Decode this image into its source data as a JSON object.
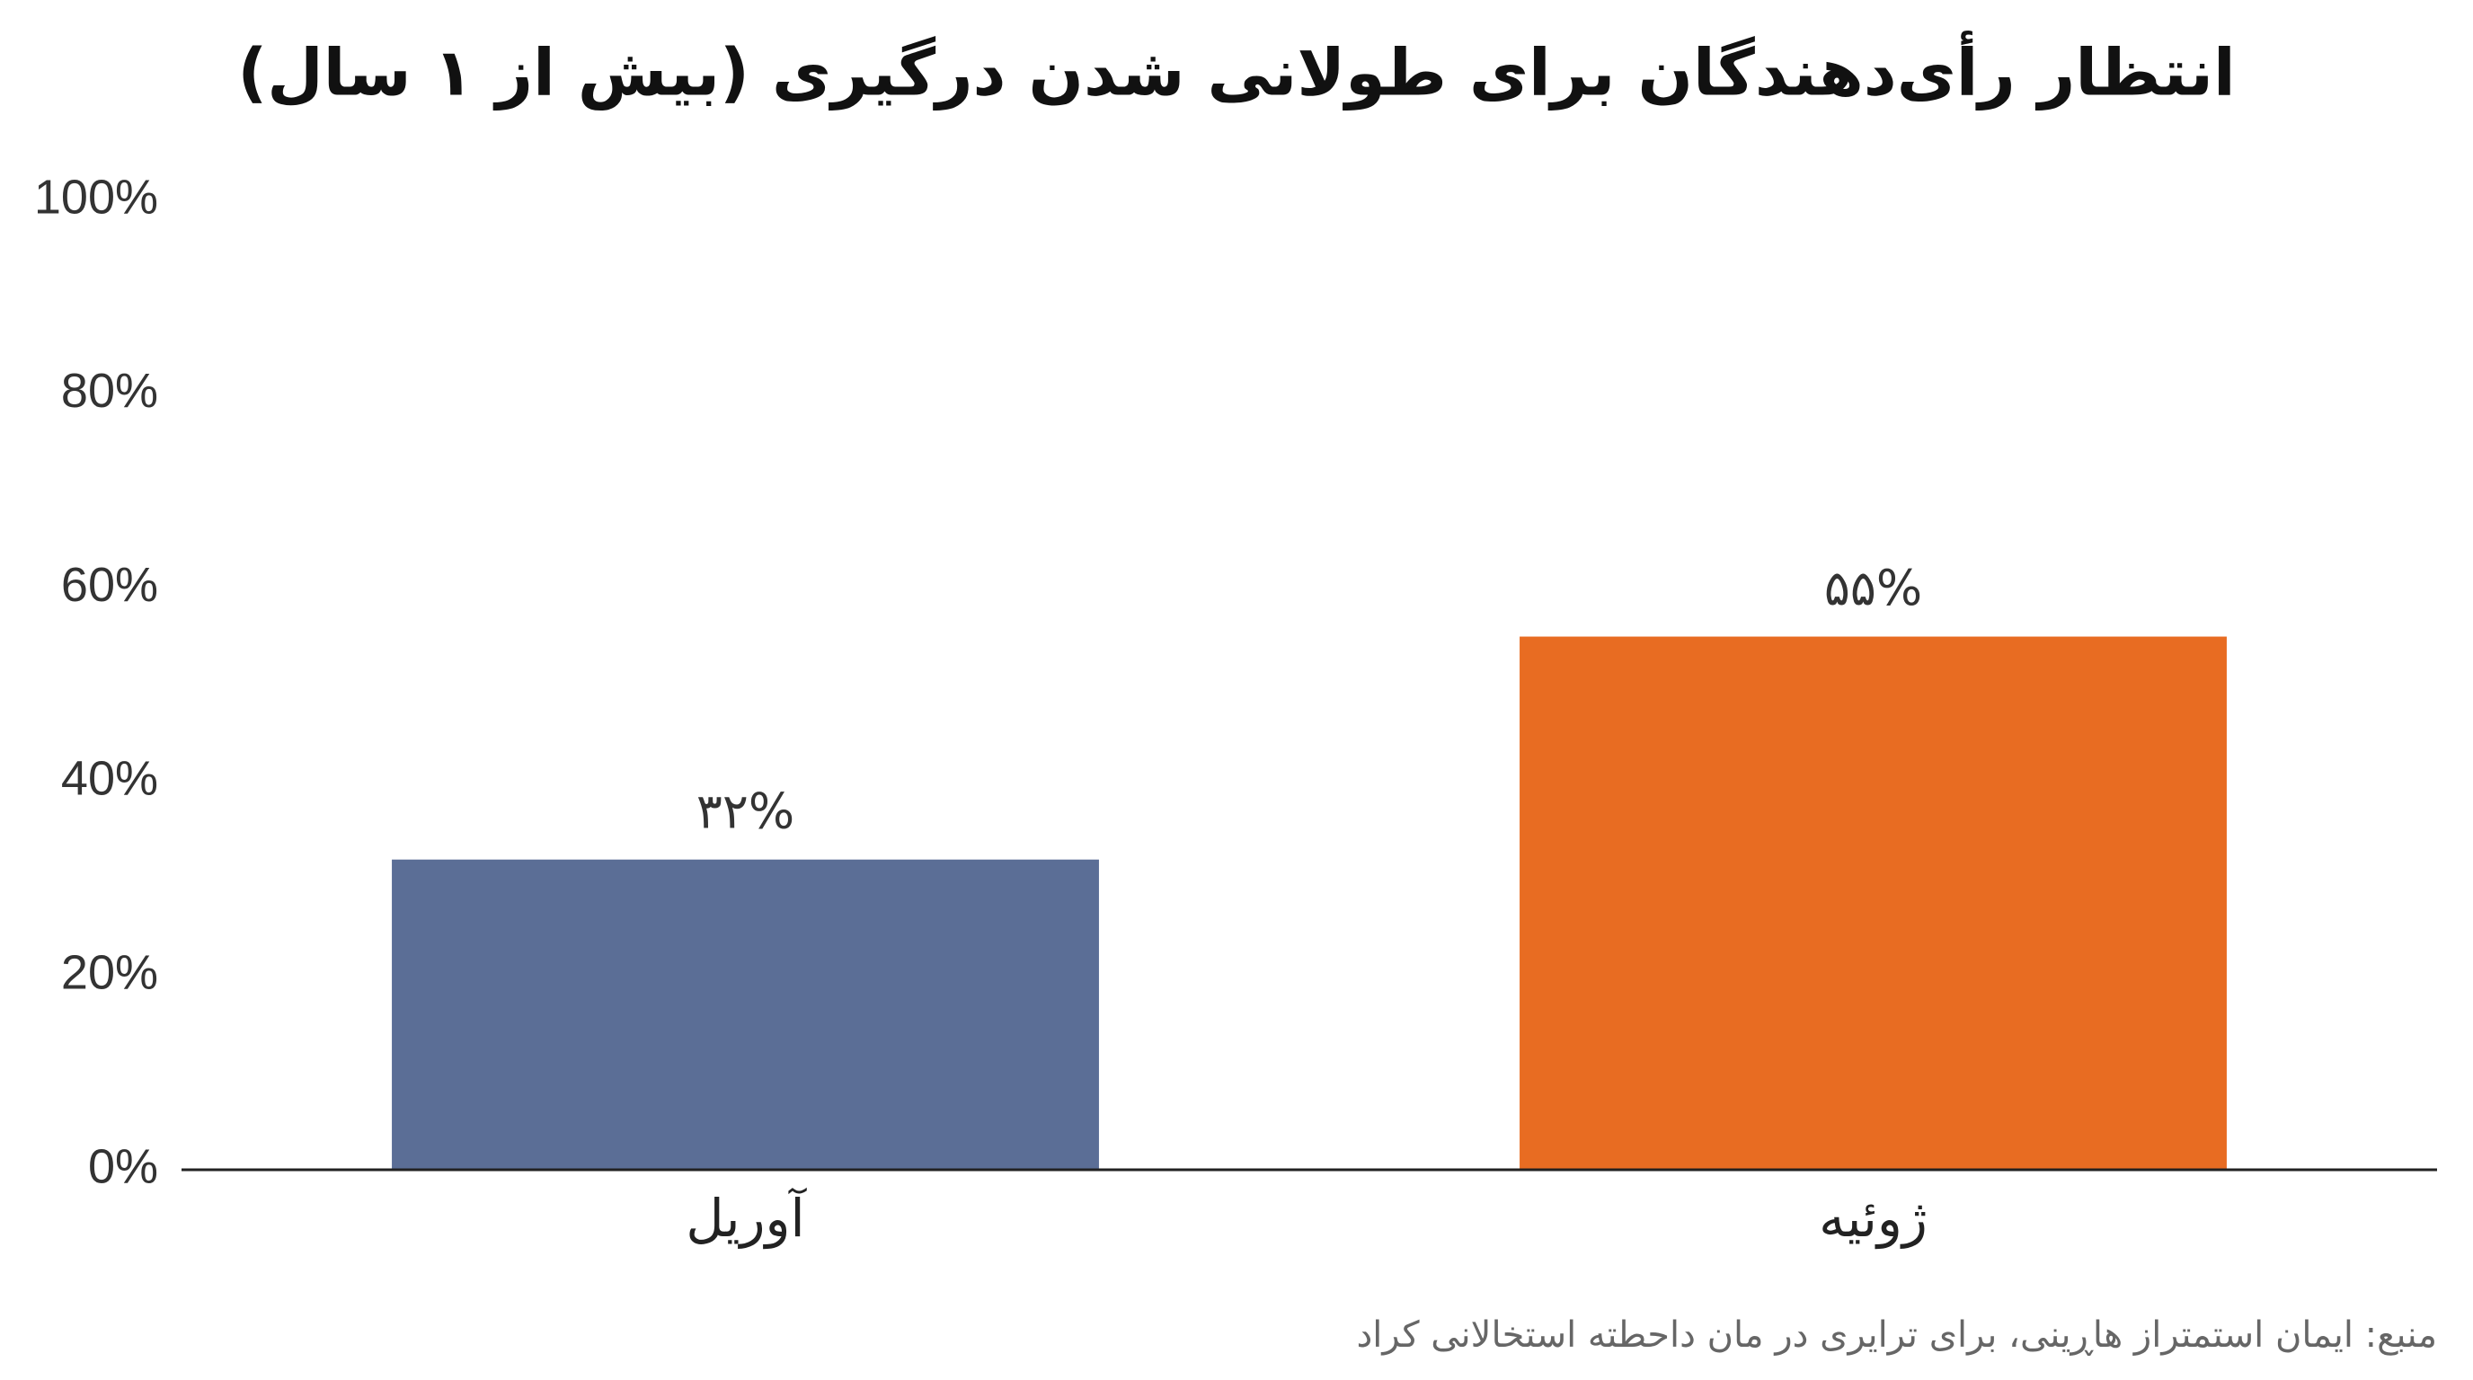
{
  "chart_data": {
    "type": "bar",
    "title": "انتظار رأی‌دهندگان برای طولانی شدن درگیری (بیش از ۱ سال)",
    "categories": [
      "آوریل",
      "ژوئیه"
    ],
    "values": [
      32,
      55
    ],
    "value_labels": [
      "۳۲%",
      "۵۵%"
    ],
    "colors": [
      "#5b6e96",
      "#e86c22"
    ],
    "ylim": [
      0,
      100
    ],
    "yticks": [
      {
        "value": 0,
        "label": "0%"
      },
      {
        "value": 20,
        "label": "20%"
      },
      {
        "value": 40,
        "label": "40%"
      },
      {
        "value": 60,
        "label": "60%"
      },
      {
        "value": 80,
        "label": "80%"
      },
      {
        "value": 100,
        "label": "100%"
      }
    ],
    "grid": false,
    "source": "منبع: ایمان استمتراز هاڕینی، برای ترایری در مان داحطته استخالانی کراد"
  }
}
